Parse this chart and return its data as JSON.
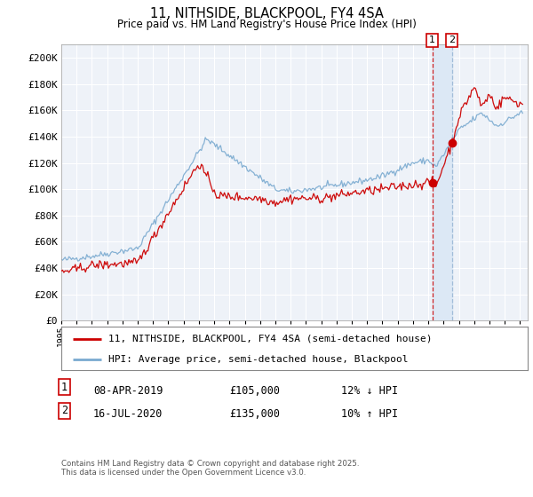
{
  "title_line1": "11, NITHSIDE, BLACKPOOL, FY4 4SA",
  "title_line2": "Price paid vs. HM Land Registry's House Price Index (HPI)",
  "background_color": "#ffffff",
  "plot_bg_color": "#eef2f8",
  "grid_color": "#ffffff",
  "red_line_label": "11, NITHSIDE, BLACKPOOL, FY4 4SA (semi-detached house)",
  "blue_line_label": "HPI: Average price, semi-detached house, Blackpool",
  "xmin_year": 1995.0,
  "xmax_year": 2025.5,
  "ymin": 0,
  "ymax": 210000,
  "yticks": [
    0,
    20000,
    40000,
    60000,
    80000,
    100000,
    120000,
    140000,
    160000,
    180000,
    200000
  ],
  "ytick_labels": [
    "£0",
    "£20K",
    "£40K",
    "£60K",
    "£80K",
    "£100K",
    "£120K",
    "£140K",
    "£160K",
    "£180K",
    "£200K"
  ],
  "xtick_years": [
    1995,
    1996,
    1997,
    1998,
    1999,
    2000,
    2001,
    2002,
    2003,
    2004,
    2005,
    2006,
    2007,
    2008,
    2009,
    2010,
    2011,
    2012,
    2013,
    2014,
    2015,
    2016,
    2017,
    2018,
    2019,
    2020,
    2021,
    2022,
    2023,
    2024,
    2025
  ],
  "event1_x": 2019.27,
  "event1_y_red": 105000,
  "event2_x": 2020.54,
  "event2_y_red": 135000,
  "event1_date": "08-APR-2019",
  "event1_price": "£105,000",
  "event1_hpi": "12% ↓ HPI",
  "event2_date": "16-JUL-2020",
  "event2_price": "£135,000",
  "event2_hpi": "10% ↑ HPI",
  "footer_text": "Contains HM Land Registry data © Crown copyright and database right 2025.\nThis data is licensed under the Open Government Licence v3.0.",
  "red_color": "#cc0000",
  "blue_color": "#7aaad0",
  "event_vline1_color": "#cc0000",
  "event_vline2_color": "#88aacc",
  "event_fill_color": "#dce8f5"
}
